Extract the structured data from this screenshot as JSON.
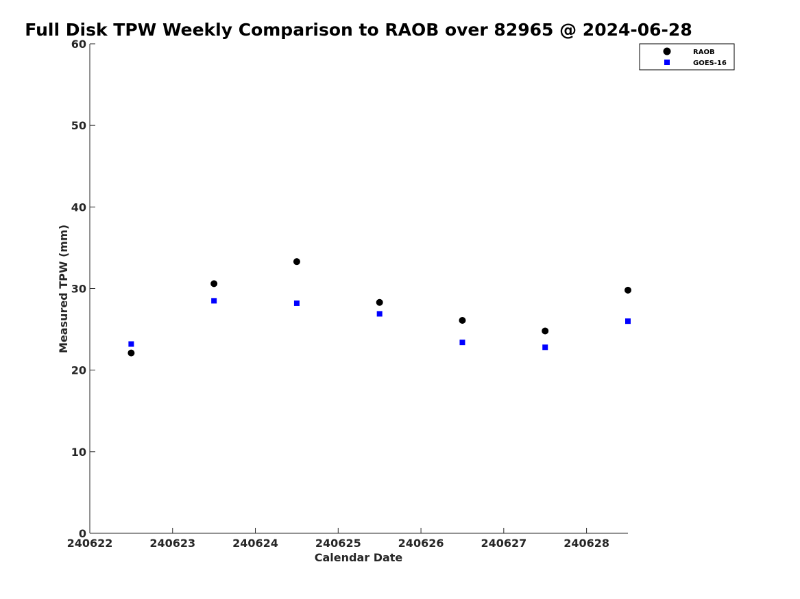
{
  "chart_data": {
    "type": "scatter",
    "title": "Full Disk TPW Weekly Comparison to RAOB over 82965 @ 2024-06-28",
    "xlabel": "Calendar Date",
    "ylabel": "Measured TPW (mm)",
    "xlim": [
      "240622",
      "240628 12Z"
    ],
    "ylim": [
      0,
      60
    ],
    "xticks": [
      "240622",
      "240623",
      "240624",
      "240625",
      "240626",
      "240627",
      "240628"
    ],
    "yticks": [
      0,
      10,
      20,
      30,
      40,
      50,
      60
    ],
    "grid": false,
    "legend_position": "top-right",
    "x": [
      "240622 12Z",
      "240623 12Z",
      "240624 12Z",
      "240625 12Z",
      "240626 12Z",
      "240627 12Z",
      "240628 12Z"
    ],
    "series": [
      {
        "name": "RAOB",
        "marker": "circle",
        "color": "#000000",
        "values": [
          22.1,
          30.6,
          33.3,
          28.3,
          26.1,
          24.8,
          29.8
        ]
      },
      {
        "name": "GOES-16",
        "marker": "square",
        "color": "#0000ff",
        "values": [
          23.2,
          28.5,
          28.2,
          26.9,
          23.4,
          22.8,
          26.0
        ]
      }
    ]
  }
}
